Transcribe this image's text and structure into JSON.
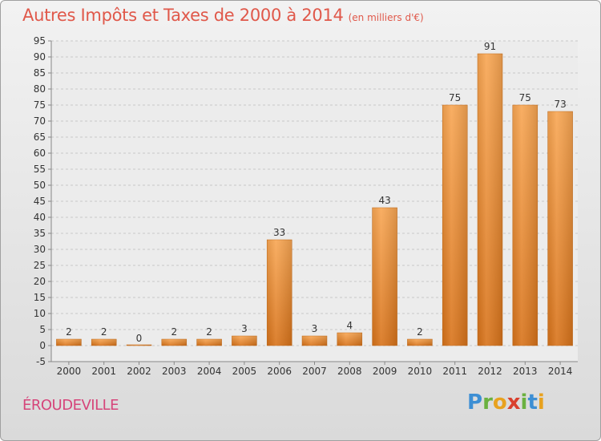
{
  "header": {
    "title": "Autres Impôts et Taxes de 2000 à 2014",
    "subtitle": "(en milliers d'€)"
  },
  "footer": {
    "commune": "ÉROUDEVILLE",
    "logo_letters": [
      {
        "ch": "P",
        "color": "#3d8fd4"
      },
      {
        "ch": "r",
        "color": "#6bb140"
      },
      {
        "ch": "o",
        "color": "#e8a21f"
      },
      {
        "ch": "x",
        "color": "#d9402e"
      },
      {
        "ch": "i",
        "color": "#6bb140"
      },
      {
        "ch": "t",
        "color": "#3d8fd4"
      },
      {
        "ch": "i",
        "color": "#e8a21f"
      }
    ]
  },
  "colors": {
    "bar_light": "#f8a653",
    "bar_dark": "#d8731a",
    "title": "#e0584a",
    "commune": "#d6457a",
    "grid": "#c8c8c8"
  },
  "chart_data": {
    "type": "bar",
    "title": "Autres Impôts et Taxes de 2000 à 2014",
    "subtitle": "(en milliers d'€)",
    "categories": [
      "2000",
      "2001",
      "2002",
      "2003",
      "2004",
      "2005",
      "2006",
      "2007",
      "2008",
      "2009",
      "2010",
      "2011",
      "2012",
      "2013",
      "2014"
    ],
    "values": [
      2,
      2,
      0,
      2,
      2,
      3,
      33,
      3,
      4,
      43,
      2,
      75,
      91,
      75,
      73
    ],
    "ylim": [
      -5,
      95
    ],
    "yticks": [
      -5,
      0,
      5,
      10,
      15,
      20,
      25,
      30,
      35,
      40,
      45,
      50,
      55,
      60,
      65,
      70,
      75,
      80,
      85,
      90,
      95
    ],
    "grid": true,
    "xlabel": "",
    "ylabel": ""
  }
}
